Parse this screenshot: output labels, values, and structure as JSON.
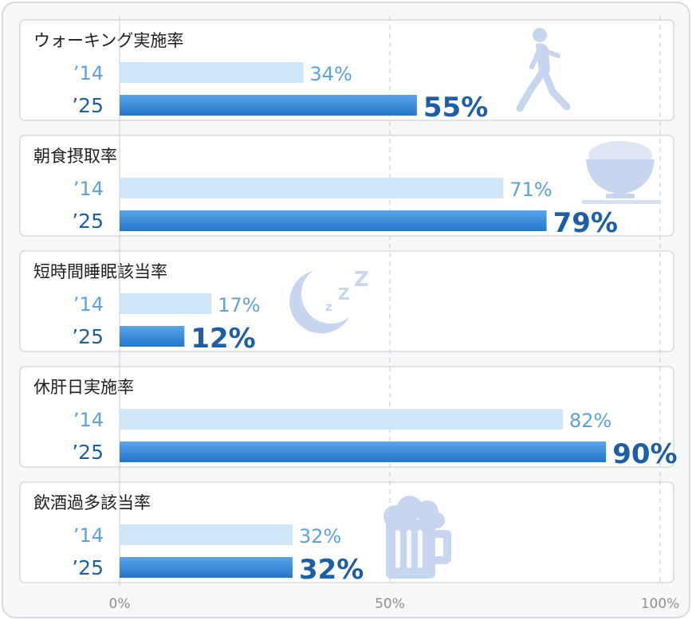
{
  "chart_data": {
    "type": "bar",
    "orientation": "horizontal",
    "xlim": [
      0,
      100
    ],
    "x_ticks": [
      "0%",
      "50%",
      "100%"
    ],
    "grid": "vertical dashed at 50% and 100%",
    "series": [
      {
        "name": "’14",
        "color": "#cfe5f8"
      },
      {
        "name": "’25",
        "color": "#2f84d6"
      }
    ],
    "categories": [
      {
        "title": "ウォーキング実施率",
        "v14": 34,
        "v25": 55,
        "label14": "34%",
        "label25": "55%",
        "icon": "walking-person-icon"
      },
      {
        "title": "朝食摂取率",
        "v14": 71,
        "v25": 79,
        "label14": "71%",
        "label25": "79%",
        "icon": "rice-bowl-icon"
      },
      {
        "title": "短時間睡眠該当率",
        "v14": 17,
        "v25": 12,
        "label14": "17%",
        "label25": "12%",
        "icon": "moon-sleep-icon"
      },
      {
        "title": "休肝日実施率",
        "v14": 82,
        "v25": 90,
        "label14": "82%",
        "label25": "90%",
        "icon": ""
      },
      {
        "title": "飲酒過多該当率",
        "v14": 32,
        "v25": 32,
        "label14": "32%",
        "label25": "32%",
        "icon": "beer-mug-icon"
      }
    ],
    "colors": {
      "light_bar": "#cfe5f8",
      "dark_bar": "#2f84d6",
      "label14": "#5aa2e0",
      "label25": "#1d5fa6",
      "icon": "#c7d6ef"
    }
  }
}
